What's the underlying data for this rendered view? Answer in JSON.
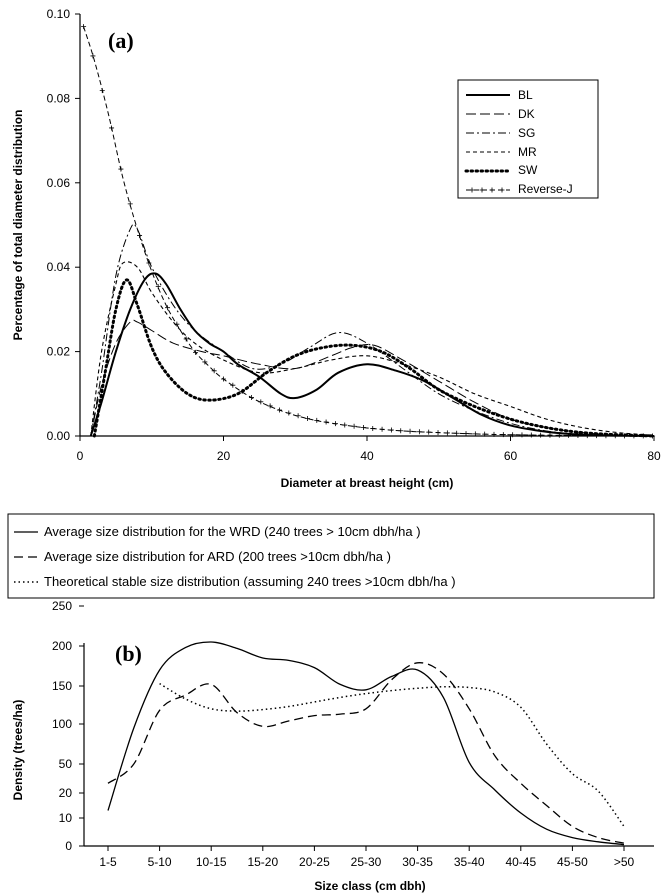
{
  "chart_data": [
    {
      "panel": "(a)",
      "type": "line",
      "title": "",
      "xlabel": "Diameter at breast height (cm)",
      "ylabel": "Percentage of total diameter distribution",
      "xlim": [
        0,
        80
      ],
      "ylim": [
        0,
        0.1
      ],
      "xticks": [
        "0",
        "20",
        "40",
        "60",
        "80"
      ],
      "yticks": [
        "0.00",
        "0.02",
        "0.04",
        "0.06",
        "0.08",
        "0.10"
      ],
      "legend_position": "top-right",
      "grid": false,
      "series": [
        {
          "name": "BL",
          "style": "solid",
          "points": [
            [
              1.5,
              0
            ],
            [
              3,
              0.008
            ],
            [
              5,
              0.02
            ],
            [
              7,
              0.03
            ],
            [
              9,
              0.037
            ],
            [
              10.5,
              0.0385
            ],
            [
              12,
              0.036
            ],
            [
              14,
              0.03
            ],
            [
              16,
              0.025
            ],
            [
              18,
              0.022
            ],
            [
              20,
              0.02
            ],
            [
              22,
              0.017
            ],
            [
              25,
              0.014
            ],
            [
              28,
              0.01
            ],
            [
              30,
              0.009
            ],
            [
              33,
              0.011
            ],
            [
              36,
              0.015
            ],
            [
              40,
              0.017
            ],
            [
              44,
              0.0155
            ],
            [
              48,
              0.013
            ],
            [
              52,
              0.009
            ],
            [
              56,
              0.005
            ],
            [
              60,
              0.0025
            ],
            [
              65,
              0.001
            ],
            [
              70,
              0.0003
            ],
            [
              75,
              0.0001
            ],
            [
              80,
              0
            ]
          ]
        },
        {
          "name": "DK",
          "style": "long-dash",
          "points": [
            [
              1.5,
              0
            ],
            [
              3,
              0.012
            ],
            [
              5,
              0.022
            ],
            [
              7,
              0.027
            ],
            [
              8,
              0.027
            ],
            [
              10,
              0.025
            ],
            [
              13,
              0.022
            ],
            [
              17,
              0.02
            ],
            [
              20,
              0.019
            ],
            [
              25,
              0.017
            ],
            [
              30,
              0.016
            ],
            [
              35,
              0.019
            ],
            [
              38,
              0.021
            ],
            [
              41,
              0.0215
            ],
            [
              45,
              0.018
            ],
            [
              50,
              0.013
            ],
            [
              55,
              0.008
            ],
            [
              60,
              0.004
            ],
            [
              65,
              0.002
            ],
            [
              70,
              0.0008
            ],
            [
              75,
              0.0002
            ],
            [
              80,
              0
            ]
          ]
        },
        {
          "name": "SG",
          "style": "dash-dot",
          "points": [
            [
              1.5,
              0
            ],
            [
              3,
              0.015
            ],
            [
              5,
              0.038
            ],
            [
              7,
              0.049
            ],
            [
              8,
              0.049
            ],
            [
              10,
              0.04
            ],
            [
              13,
              0.031
            ],
            [
              16,
              0.025
            ],
            [
              20,
              0.02
            ],
            [
              24,
              0.016
            ],
            [
              28,
              0.017
            ],
            [
              32,
              0.021
            ],
            [
              36,
              0.0245
            ],
            [
              40,
              0.022
            ],
            [
              45,
              0.016
            ],
            [
              50,
              0.01
            ],
            [
              55,
              0.006
            ],
            [
              60,
              0.003
            ],
            [
              65,
              0.0012
            ],
            [
              70,
              0.0004
            ],
            [
              80,
              0
            ]
          ]
        },
        {
          "name": "MR",
          "style": "short-dash",
          "points": [
            [
              1.5,
              0
            ],
            [
              3,
              0.02
            ],
            [
              5,
              0.036
            ],
            [
              6,
              0.041
            ],
            [
              8,
              0.04
            ],
            [
              10,
              0.034
            ],
            [
              13,
              0.027
            ],
            [
              16,
              0.022
            ],
            [
              20,
              0.018
            ],
            [
              25,
              0.015
            ],
            [
              30,
              0.016
            ],
            [
              35,
              0.018
            ],
            [
              40,
              0.019
            ],
            [
              45,
              0.017
            ],
            [
              50,
              0.014
            ],
            [
              55,
              0.01
            ],
            [
              60,
              0.007
            ],
            [
              65,
              0.004
            ],
            [
              70,
              0.002
            ],
            [
              75,
              0.0008
            ],
            [
              80,
              0.0002
            ]
          ]
        },
        {
          "name": "SW",
          "style": "dotted-bold",
          "points": [
            [
              2,
              0
            ],
            [
              3.5,
              0.015
            ],
            [
              5,
              0.03
            ],
            [
              6.5,
              0.037
            ],
            [
              8,
              0.031
            ],
            [
              10,
              0.021
            ],
            [
              12,
              0.015
            ],
            [
              15,
              0.01
            ],
            [
              18,
              0.0085
            ],
            [
              22,
              0.01
            ],
            [
              26,
              0.015
            ],
            [
              30,
              0.019
            ],
            [
              34,
              0.021
            ],
            [
              38,
              0.0215
            ],
            [
              42,
              0.02
            ],
            [
              46,
              0.016
            ],
            [
              50,
              0.011
            ],
            [
              55,
              0.007
            ],
            [
              60,
              0.004
            ],
            [
              65,
              0.002
            ],
            [
              70,
              0.0008
            ],
            [
              75,
              0.0003
            ],
            [
              80,
              0
            ]
          ]
        },
        {
          "name": "Reverse-J",
          "style": "dash-plus",
          "points": [
            [
              0.5,
              0.097
            ],
            [
              2,
              0.089
            ],
            [
              4,
              0.076
            ],
            [
              6,
              0.061
            ],
            [
              8,
              0.049
            ],
            [
              10,
              0.039
            ],
            [
              12,
              0.031
            ],
            [
              14,
              0.025
            ],
            [
              16,
              0.02
            ],
            [
              18,
              0.0165
            ],
            [
              20,
              0.0135
            ],
            [
              24,
              0.009
            ],
            [
              28,
              0.006
            ],
            [
              32,
              0.004
            ],
            [
              36,
              0.0028
            ],
            [
              40,
              0.0019
            ],
            [
              45,
              0.0012
            ],
            [
              50,
              0.0008
            ],
            [
              55,
              0.0005
            ],
            [
              60,
              0.0003
            ],
            [
              70,
              0.0001
            ],
            [
              80,
              0
            ]
          ]
        }
      ]
    },
    {
      "panel": "(b)",
      "type": "line",
      "title": "",
      "xlabel": "Size class (cm dbh)",
      "ylabel": "Density (trees/ha)",
      "categories": [
        "1-5",
        "5-10",
        "10-15",
        "15-20",
        "20-25",
        "25-30",
        "30-35",
        "35-40",
        "40-45",
        "45-50",
        ">50"
      ],
      "yticks": [
        "0",
        "10",
        "20",
        "50",
        "100",
        "150",
        "200",
        "250"
      ],
      "legend_position": "top (boxed, above plot)",
      "grid": false,
      "series": [
        {
          "name": "Average size distribution for the WRD (240 trees > 10cm dbh/ha )",
          "style": "solid",
          "points": [
            [
              0,
              13
            ],
            [
              0.5,
              95
            ],
            [
              1,
              170
            ],
            [
              1.5,
              198
            ],
            [
              2,
              205
            ],
            [
              2.5,
              197
            ],
            [
              3,
              185
            ],
            [
              3.5,
              182
            ],
            [
              4,
              173
            ],
            [
              4.5,
              152
            ],
            [
              5,
              145
            ],
            [
              5.5,
              162
            ],
            [
              6,
              170
            ],
            [
              6.5,
              135
            ],
            [
              7,
              52
            ],
            [
              7.5,
              23
            ],
            [
              8,
              12
            ],
            [
              8.5,
              6
            ],
            [
              9,
              3
            ],
            [
              9.5,
              1.5
            ],
            [
              10,
              0.5
            ]
          ]
        },
        {
          "name": "Average size distribution for ARD (200 trees >10cm dbh/ha )",
          "style": "dash",
          "points": [
            [
              0,
              30
            ],
            [
              0.5,
              50
            ],
            [
              1,
              118
            ],
            [
              1.5,
              138
            ],
            [
              2,
              152
            ],
            [
              2.5,
              115
            ],
            [
              3,
              97
            ],
            [
              3.5,
              104
            ],
            [
              4,
              111
            ],
            [
              4.5,
              113
            ],
            [
              5,
              120
            ],
            [
              5.5,
              158
            ],
            [
              6,
              179
            ],
            [
              6.5,
              165
            ],
            [
              7,
              120
            ],
            [
              7.5,
              60
            ],
            [
              8,
              30
            ],
            [
              8.5,
              15
            ],
            [
              9,
              7
            ],
            [
              9.5,
              3
            ],
            [
              10,
              1
            ]
          ]
        },
        {
          "name": "Theoretical stable size distribution (assuming 240 trees >10cm dbh/ha )",
          "style": "dotted",
          "points": [
            [
              1,
              153
            ],
            [
              1.5,
              133
            ],
            [
              2,
              120
            ],
            [
              2.5,
              117
            ],
            [
              3,
              119
            ],
            [
              3.5,
              123
            ],
            [
              4,
              129
            ],
            [
              4.5,
              135
            ],
            [
              5,
              140
            ],
            [
              5.5,
              144
            ],
            [
              6,
              147
            ],
            [
              6.5,
              149
            ],
            [
              7,
              148
            ],
            [
              7.5,
              142
            ],
            [
              8,
              122
            ],
            [
              8.5,
              75
            ],
            [
              9,
              40
            ],
            [
              9.5,
              22
            ],
            [
              10,
              7
            ]
          ]
        }
      ]
    }
  ]
}
